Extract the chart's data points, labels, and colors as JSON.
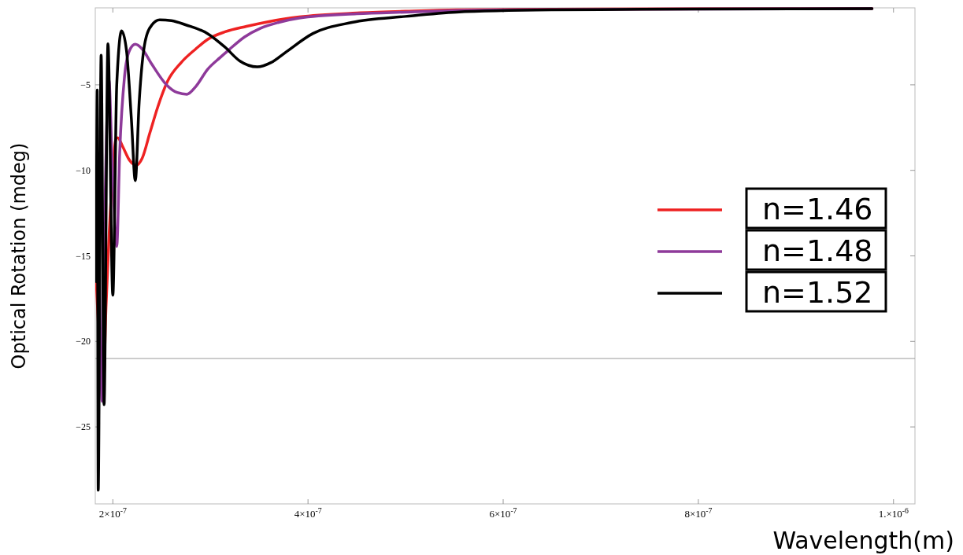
{
  "chart_data": {
    "type": "line",
    "xlabel": "Wavelength(m)",
    "ylabel": "Optical Rotation (mdeg)",
    "xlim": [
      1.82e-07,
      1.022e-06
    ],
    "ylim": [
      -29.5,
      -0.5
    ],
    "xticks": [
      {
        "value": 2e-07,
        "label": "2×10$^{-7}$"
      },
      {
        "value": 4e-07,
        "label": "4×10$^{-7}$"
      },
      {
        "value": 6e-07,
        "label": "6×10$^{-7}$"
      },
      {
        "value": 8e-07,
        "label": "8×10$^{-7}$"
      },
      {
        "value": 1e-06,
        "label": "1.×10$^{-6}$"
      }
    ],
    "yticks": [
      -5,
      -10,
      -15,
      -20,
      -25
    ],
    "grid": false,
    "legend": "right",
    "marker": "none",
    "line_style": "solid",
    "ref_lines": [
      {
        "axis": "y",
        "value": -21,
        "color": "#999999"
      }
    ],
    "series": [
      {
        "name": "n=1.46",
        "color": "#ee2222",
        "x": [
          1.83e-07,
          1.86e-07,
          1.9e-07,
          1.93e-07,
          1.96e-07,
          2e-07,
          2.03e-07,
          2.05e-07,
          2.1e-07,
          2.17e-07,
          2.24e-07,
          2.3e-07,
          2.38e-07,
          2.46e-07,
          2.56e-07,
          2.7e-07,
          2.85e-07,
          2.97e-07,
          3.15e-07,
          3.37e-07,
          3.6e-07,
          3.91e-07,
          4.5e-07,
          5e-07,
          5.52e-07,
          6.5e-07,
          8e-07,
          9.78e-07
        ],
        "values": [
          -16.5,
          -20,
          -23,
          -18,
          -14,
          -10,
          -8.2,
          -8.1,
          -8.6,
          -9.4,
          -9.7,
          -9.3,
          -7.8,
          -6.3,
          -4.8,
          -3.7,
          -2.9,
          -2.35,
          -1.9,
          -1.58,
          -1.3,
          -1.03,
          -0.8,
          -0.7,
          -0.62,
          -0.58,
          -0.56,
          -0.55
        ]
      },
      {
        "name": "n=1.48",
        "color": "#8e3a9a",
        "x": [
          1.86e-07,
          1.89e-07,
          1.92e-07,
          1.96e-07,
          1.99e-07,
          2.04e-07,
          2.07e-07,
          2.12e-07,
          2.17e-07,
          2.23e-07,
          2.3e-07,
          2.4e-07,
          2.55e-07,
          2.66e-07,
          2.76e-07,
          2.85e-07,
          2.97e-07,
          3.1e-07,
          3.19e-07,
          3.35e-07,
          3.51e-07,
          3.7e-07,
          3.91e-07,
          4.5e-07,
          5e-07,
          5.52e-07,
          6.5e-07,
          8e-07,
          9.78e-07
        ],
        "values": [
          -15,
          -23.5,
          -12,
          -4.7,
          -9,
          -14.45,
          -9,
          -4.5,
          -3,
          -2.63,
          -2.9,
          -3.8,
          -5,
          -5.45,
          -5.55,
          -5.1,
          -4.1,
          -3.4,
          -2.95,
          -2.2,
          -1.7,
          -1.35,
          -1.1,
          -0.85,
          -0.75,
          -0.66,
          -0.6,
          -0.57,
          -0.55
        ]
      },
      {
        "name": "n=1.52",
        "color": "#000000",
        "x": [
          1.83e-07,
          1.84e-07,
          1.85e-07,
          1.88e-07,
          1.91e-07,
          1.95e-07,
          2e-07,
          2.04e-07,
          2.09e-07,
          2.14e-07,
          2.19e-07,
          2.23e-07,
          2.27e-07,
          2.33e-07,
          2.4e-07,
          2.48e-07,
          2.6e-07,
          2.75e-07,
          2.97e-07,
          3.15e-07,
          3.3e-07,
          3.48e-07,
          3.62e-07,
          3.77e-07,
          4.05e-07,
          4.45e-07,
          5e-07,
          5.52e-07,
          6.5e-07,
          8e-07,
          9.78e-07
        ],
        "values": [
          -16.5,
          -5.3,
          -28.7,
          -3.27,
          -23.7,
          -2.6,
          -17.3,
          -5,
          -1.85,
          -3,
          -7,
          -10.6,
          -6,
          -2.5,
          -1.5,
          -1.2,
          -1.25,
          -1.5,
          -2,
          -2.8,
          -3.6,
          -3.95,
          -3.7,
          -3.1,
          -2,
          -1.35,
          -1,
          -0.75,
          -0.62,
          -0.57,
          -0.55
        ]
      }
    ]
  }
}
